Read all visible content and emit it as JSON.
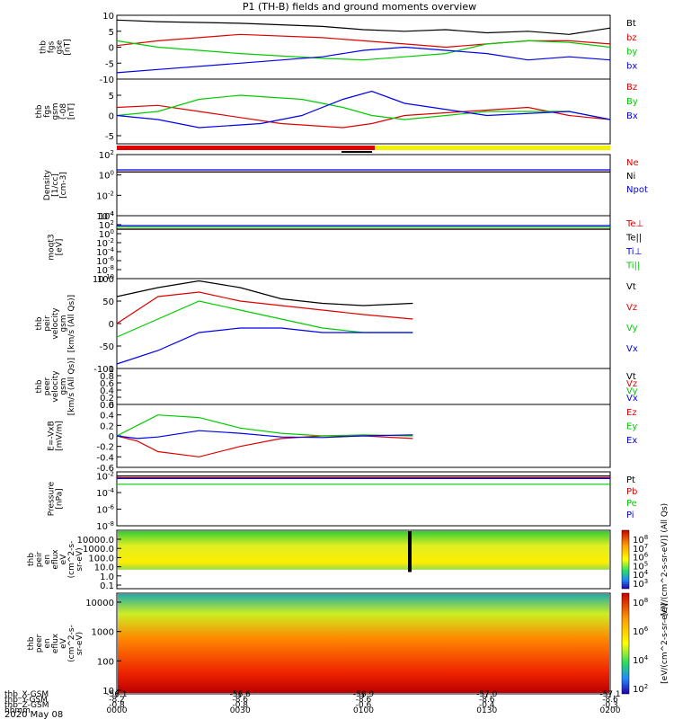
{
  "title": "P1 (TH-B) fields and ground moments overview",
  "colors": {
    "black": "#000000",
    "red": "#e00000",
    "green": "#00cc00",
    "blue": "#0000ee",
    "yellow": "#f2f200"
  },
  "chart_data": [
    {
      "type": "line",
      "ylabel": [
        "thb",
        "fgs",
        "gse",
        "[nT]"
      ],
      "ylim": [
        -10,
        10
      ],
      "yticks": [
        10,
        5,
        0,
        -5,
        -10
      ],
      "series": [
        {
          "name": "Bt",
          "color": "black",
          "x": [
            0,
            10,
            30,
            50,
            60,
            70,
            80,
            90,
            100,
            110,
            120
          ],
          "y": [
            8.5,
            8,
            7.5,
            6.5,
            5.5,
            5,
            5.5,
            4.5,
            5,
            4,
            6
          ]
        },
        {
          "name": "bz",
          "color": "red",
          "x": [
            0,
            10,
            30,
            50,
            60,
            70,
            80,
            90,
            100,
            110,
            120
          ],
          "y": [
            0.5,
            2,
            4,
            3,
            2,
            1,
            0,
            1,
            2,
            2,
            1
          ]
        },
        {
          "name": "by",
          "color": "green",
          "x": [
            0,
            10,
            30,
            50,
            60,
            70,
            80,
            90,
            100,
            110,
            120
          ],
          "y": [
            2,
            0,
            -2,
            -3.5,
            -4,
            -3,
            -2,
            1,
            2,
            1.5,
            0
          ]
        },
        {
          "name": "bx",
          "color": "blue",
          "x": [
            0,
            10,
            30,
            50,
            60,
            70,
            80,
            90,
            100,
            110,
            120
          ],
          "y": [
            -8,
            -7,
            -5,
            -3,
            -1,
            0,
            -1,
            -2,
            -4,
            -3,
            -4
          ]
        }
      ]
    },
    {
      "type": "line",
      "ylabel": [
        "thb",
        "fgs",
        "gsm",
        "(-08",
        "[nT]"
      ],
      "ylim": [
        -7,
        9
      ],
      "yticks": [
        5,
        0,
        -5
      ],
      "series": [
        {
          "name": "Bz",
          "color": "red",
          "x": [
            0,
            10,
            20,
            40,
            55,
            62,
            70,
            85,
            100,
            110,
            120
          ],
          "y": [
            2,
            2.5,
            1,
            -2,
            -3,
            -2,
            0,
            1,
            2,
            0,
            -1
          ]
        },
        {
          "name": "By",
          "color": "green",
          "x": [
            0,
            10,
            20,
            30,
            45,
            55,
            62,
            70,
            90,
            110,
            120
          ],
          "y": [
            0,
            1,
            4,
            5,
            4,
            2,
            0,
            -1,
            1,
            1,
            -1
          ]
        },
        {
          "name": "Bx",
          "color": "blue",
          "x": [
            0,
            10,
            20,
            35,
            45,
            55,
            62,
            70,
            90,
            110,
            120
          ],
          "y": [
            0,
            -1,
            -3,
            -2,
            0,
            4,
            6,
            3,
            0,
            1,
            -1
          ]
        }
      ]
    },
    {
      "type": "line",
      "ylabel": [
        "Density",
        "[1/cc]",
        "[cm-3]"
      ],
      "ylog": true,
      "ylim": [
        -4,
        2
      ],
      "yticks": [
        "10^2",
        "10^0",
        "10^-2",
        "10^-4"
      ],
      "series": [
        {
          "name": "Ne",
          "color": "red",
          "x": [
            0,
            120
          ],
          "y": [
            0.3,
            0.3
          ]
        },
        {
          "name": "Ni",
          "color": "black",
          "x": [
            0,
            120
          ],
          "y": [
            0.3,
            0.3
          ]
        },
        {
          "name": "Npot",
          "color": "blue",
          "x": [
            0,
            120
          ],
          "y": [
            0.5,
            0.5
          ]
        }
      ]
    },
    {
      "type": "line",
      "ylabel": [
        "moqt3",
        "[eV]"
      ],
      "ylog": true,
      "ylim": [
        -10,
        4
      ],
      "yticks": [
        "10^4",
        "10^2",
        "10^0",
        "10^-2",
        "10^-4",
        "10^-6",
        "10^-8",
        "10^-10"
      ],
      "series": [
        {
          "name": "Te⊥",
          "color": "red",
          "x": [
            0,
            120
          ],
          "y": [
            1,
            1
          ]
        },
        {
          "name": "Te||",
          "color": "black",
          "x": [
            0,
            120
          ],
          "y": [
            1,
            1
          ]
        },
        {
          "name": "Ti⊥",
          "color": "blue",
          "x": [
            0,
            120
          ],
          "y": [
            1.8,
            1.8
          ]
        },
        {
          "name": "Ti||",
          "color": "green",
          "x": [
            0,
            120
          ],
          "y": [
            1.5,
            1.5
          ]
        }
      ]
    },
    {
      "type": "line",
      "ylabel": [
        "thb",
        "peir",
        "velocity",
        "gsm",
        "[km/s (All Qs)]"
      ],
      "ylim": [
        -100,
        100
      ],
      "yticks": [
        100,
        50,
        0,
        -50,
        -100
      ],
      "series": [
        {
          "name": "Vt",
          "color": "black",
          "x": [
            0,
            10,
            20,
            30,
            40,
            50,
            60,
            72
          ],
          "y": [
            60,
            80,
            95,
            80,
            55,
            45,
            40,
            45
          ]
        },
        {
          "name": "Vz",
          "color": "red",
          "x": [
            0,
            10,
            20,
            30,
            40,
            50,
            60,
            72
          ],
          "y": [
            0,
            60,
            70,
            50,
            40,
            30,
            20,
            10
          ]
        },
        {
          "name": "Vy",
          "color": "green",
          "x": [
            0,
            10,
            20,
            30,
            40,
            50,
            60,
            72
          ],
          "y": [
            -30,
            10,
            50,
            30,
            10,
            -10,
            -20,
            -20
          ]
        },
        {
          "name": "Vx",
          "color": "blue",
          "x": [
            0,
            10,
            20,
            30,
            40,
            50,
            60,
            72
          ],
          "y": [
            -90,
            -60,
            -20,
            -10,
            -10,
            -20,
            -20,
            -20
          ]
        }
      ]
    },
    {
      "type": "line",
      "ylabel": [
        "thb",
        "peer",
        "velocity",
        "gsm",
        "[km/s (All Qs)]"
      ],
      "ylim": [
        0,
        1
      ],
      "yticks": [
        1.0,
        0.8,
        0.6,
        0.4,
        0.2,
        0.0
      ],
      "series": [
        {
          "name": "Vt",
          "color": "black"
        },
        {
          "name": "Vz",
          "color": "red"
        },
        {
          "name": "Vy",
          "color": "green"
        },
        {
          "name": "Vx",
          "color": "blue"
        }
      ]
    },
    {
      "type": "line",
      "ylabel": [
        "E=-VxB",
        "[mV/m]"
      ],
      "ylim": [
        -0.6,
        0.6
      ],
      "yticks": [
        0.6,
        0.4,
        0.2,
        0.0,
        -0.2,
        -0.4,
        -0.6
      ],
      "series": [
        {
          "name": "Ez",
          "color": "red",
          "x": [
            0,
            5,
            10,
            20,
            30,
            40,
            50,
            60,
            72
          ],
          "y": [
            0.0,
            -0.1,
            -0.3,
            -0.4,
            -0.2,
            -0.05,
            0.0,
            0.0,
            -0.05
          ]
        },
        {
          "name": "Ey",
          "color": "green",
          "x": [
            0,
            5,
            10,
            20,
            30,
            40,
            50,
            60,
            72
          ],
          "y": [
            0.0,
            0.2,
            0.4,
            0.35,
            0.15,
            0.05,
            0.0,
            0.02,
            0.0
          ]
        },
        {
          "name": "Ex",
          "color": "blue",
          "x": [
            0,
            5,
            10,
            20,
            30,
            40,
            50,
            60,
            72
          ],
          "y": [
            0.0,
            -0.05,
            -0.02,
            0.1,
            0.05,
            -0.02,
            -0.03,
            0.0,
            0.02
          ]
        }
      ]
    },
    {
      "type": "line",
      "ylabel": [
        "Pressure",
        "[nPa]"
      ],
      "ylog": true,
      "ylim": [
        -8,
        -1.5
      ],
      "yticks": [
        "10^-2",
        "10^-4",
        "10^-6",
        "10^-8"
      ],
      "series": [
        {
          "name": "Pt",
          "color": "black",
          "x": [
            0,
            120
          ],
          "y": [
            -2,
            -2
          ]
        },
        {
          "name": "Pb",
          "color": "red",
          "x": [
            0,
            120
          ],
          "y": [
            -2.2,
            -2.2
          ]
        },
        {
          "name": "Pe",
          "color": "green",
          "x": [
            0,
            120
          ],
          "y": [
            -3,
            -3
          ]
        },
        {
          "name": "Pi",
          "color": "blue",
          "x": [
            0,
            120
          ],
          "y": [
            -2.3,
            -2.3
          ]
        }
      ]
    },
    {
      "type": "heatmap",
      "ylabel": [
        "thb",
        "peir",
        "en",
        "eflux",
        "eV",
        "(cm^2-s-",
        "sr-eV)"
      ],
      "ylim": [
        0.1,
        10000
      ],
      "yticks": [
        "10000.0",
        "1000.0",
        "100.0",
        "10.0",
        "1.0",
        "0.1"
      ],
      "colorbar": {
        "ticks": [
          "10^8",
          "10^7",
          "10^6",
          "10^5",
          "10^4",
          "10^3"
        ],
        "label": "[eV/(cm^2-s-sr-eV)] (All Qs)"
      }
    },
    {
      "type": "heatmap",
      "ylabel": [
        "thb",
        "peer",
        "en",
        "eflux",
        "eV",
        "(cm^2-s-",
        "sr-eV)"
      ],
      "ylim": [
        10,
        10000
      ],
      "yticks": [
        "10000",
        "1000",
        "100",
        "10"
      ],
      "colorbar": {
        "ticks": [
          "10^8",
          "10^6",
          "10^4",
          "10^2"
        ],
        "label": "[eV/(cm^2-s-sr-eV)]"
      }
    }
  ],
  "xaxis": {
    "rows": [
      {
        "label": "thb_X-GSM",
        "values": [
          "-56.1",
          "-56.6",
          "-56.9",
          "-57.0",
          "-57.1"
        ]
      },
      {
        "label": "thb_Y-GSM",
        "values": [
          "-8.2",
          "-8.6",
          "-8.6",
          "-8.6",
          "-8.6"
        ]
      },
      {
        "label": "thb_Z-GSM",
        "values": [
          "-0.8",
          "-0.8",
          "-0.6",
          "-0.4",
          "-0.3"
        ]
      },
      {
        "label": "hhmm",
        "values": [
          "0000",
          "0030",
          "0100",
          "0130",
          "0200"
        ]
      }
    ],
    "date": "2020 May 08"
  }
}
